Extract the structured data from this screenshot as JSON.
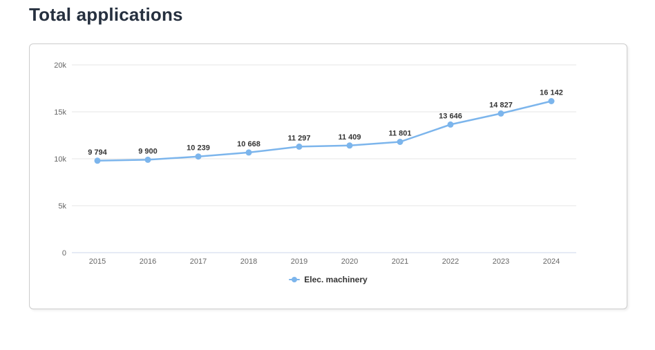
{
  "title": "Total applications",
  "chart_data": {
    "type": "line",
    "categories": [
      "2015",
      "2016",
      "2017",
      "2018",
      "2019",
      "2020",
      "2021",
      "2022",
      "2023",
      "2024"
    ],
    "series": [
      {
        "name": "Elec. machinery",
        "values": [
          9794,
          9900,
          10239,
          10668,
          11297,
          11409,
          11801,
          13646,
          14827,
          16142
        ],
        "value_labels": [
          "9 794",
          "9 900",
          "10 239",
          "10 668",
          "11 297",
          "11 409",
          "11 801",
          "13 646",
          "14 827",
          "16 142"
        ],
        "color": "#7cb5ec"
      }
    ],
    "title": "",
    "xlabel": "",
    "ylabel": "",
    "ylim": [
      0,
      20000
    ],
    "ytick_values": [
      0,
      5000,
      10000,
      15000,
      20000
    ],
    "ytick_labels": [
      "0",
      "5k",
      "10k",
      "15k",
      "20k"
    ],
    "grid": true,
    "legend_position": "bottom-center",
    "data_labels_visible": true
  },
  "colors": {
    "title_text": "#26303f",
    "axis_label": "#666666",
    "grid_line": "#e6e6e6",
    "axis_line": "#ccd6eb",
    "series": "#7cb5ec",
    "data_label": "#333333",
    "card_border": "#cccccc"
  }
}
